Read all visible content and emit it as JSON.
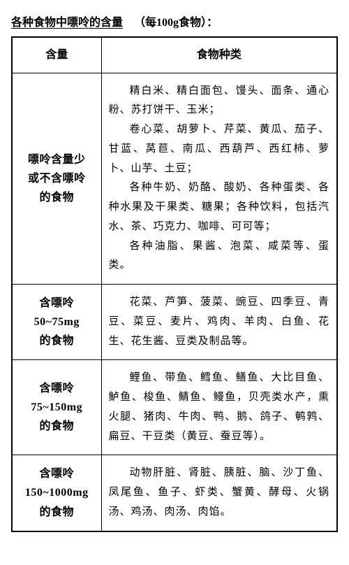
{
  "title": {
    "main": "各种食物中嘌呤的含量",
    "suffix": "（每100g食物）："
  },
  "headers": {
    "col1": "含量",
    "col2": "食物种类"
  },
  "rows": [
    {
      "category_lines": [
        "嘌呤含量少",
        "或不含嘌呤",
        "的食物"
      ],
      "paragraphs": [
        "精白米、精白面包、馒头、面条、通心粉、苏打饼干、玉米；",
        "卷心菜、胡萝卜、芹菜、黄瓜、茄子、甘蓝、莴苣、南瓜、西葫芦、西红柿、萝卜、山芋、土豆；",
        "各种牛奶、奶酪、酸奶、各种蛋类、各种水果及干果类、糖果；各种饮料，包括汽水、茶、巧克力、咖啡、可可等；",
        "各种油脂、果酱、泡菜、咸菜等、蛋类。"
      ]
    },
    {
      "category_lines": [
        "含嘌呤",
        "50~75mg",
        "的食物"
      ],
      "paragraphs": [
        "花菜、芦笋、菠菜、豌豆、四季豆、青豆、菜豆、麦片、鸡肉、羊肉、白鱼、花生、花生酱、豆类及制品等。"
      ]
    },
    {
      "category_lines": [
        "含嘌呤",
        "75~150mg",
        "的食物"
      ],
      "paragraphs": [
        "鲤鱼、带鱼、鳕鱼、鳝鱼、大比目鱼、鲈鱼、梭鱼、鲭鱼、鳗鱼，贝壳类水产，熏火腿、猪肉、牛肉、鸭、鹅、鸽子、鹌鹑、扁豆、干豆类（黄豆、蚕豆等）。"
      ]
    },
    {
      "category_lines": [
        "含嘌呤",
        "150~1000mg",
        "的食物"
      ],
      "paragraphs": [
        "动物肝脏、肾脏、胰脏、脑、沙丁鱼、凤尾鱼、鱼子、虾类、蟹黄、酵母、火锅汤、鸡汤、肉汤、肉馅。"
      ]
    }
  ],
  "colors": {
    "text": "#000000",
    "background": "#ffffff",
    "border": "#000000"
  },
  "fonts": {
    "family": "SimSun",
    "title_size_pt": 12,
    "header_size_pt": 12,
    "body_size_pt": 11
  }
}
